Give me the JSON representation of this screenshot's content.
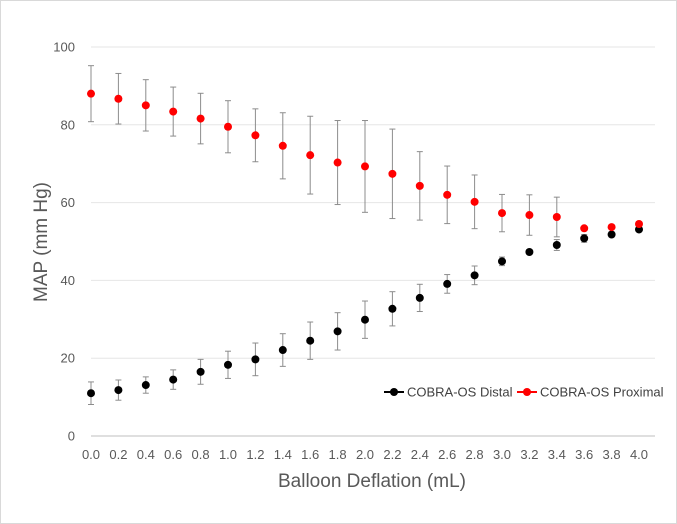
{
  "chart_data": {
    "type": "scatter",
    "xlabel": "Balloon Deflation (mL)",
    "ylabel": "MAP (mm Hg)",
    "xlim": [
      0,
      4
    ],
    "ylim": [
      0,
      100
    ],
    "x_ticks": [
      "0.0",
      "0.2",
      "0.4",
      "0.6",
      "0.8",
      "1.0",
      "1.2",
      "1.4",
      "1.6",
      "1.8",
      "2.0",
      "2.2",
      "2.4",
      "2.6",
      "2.8",
      "3.0",
      "3.2",
      "3.4",
      "3.6",
      "3.8",
      "4.0"
    ],
    "y_ticks": [
      "0",
      "20",
      "40",
      "60",
      "80",
      "100"
    ],
    "grid": "horizontal",
    "legend_position": "bottom-right",
    "series": [
      {
        "name": "COBRA-OS Distal",
        "color": "#000000",
        "x": [
          0.0,
          0.2,
          0.4,
          0.6,
          0.8,
          1.0,
          1.2,
          1.4,
          1.6,
          1.8,
          2.0,
          2.2,
          2.4,
          2.6,
          2.8,
          3.0,
          3.2,
          3.4,
          3.6,
          3.8,
          4.0
        ],
        "y": [
          11.0,
          11.8,
          13.1,
          14.5,
          16.5,
          18.3,
          19.7,
          22.1,
          24.5,
          26.9,
          29.9,
          32.7,
          35.5,
          39.1,
          41.3,
          44.9,
          47.3,
          49.1,
          50.8,
          51.8,
          53.1
        ],
        "err": [
          2.9,
          2.6,
          2.1,
          2.5,
          3.2,
          3.5,
          4.2,
          4.2,
          4.8,
          4.8,
          4.8,
          4.4,
          3.5,
          2.4,
          2.4,
          1.1,
          0.0,
          1.4,
          1.0,
          0.0,
          0.0
        ]
      },
      {
        "name": "COBRA-OS Proximal",
        "color": "#ff0000",
        "x": [
          0.0,
          0.2,
          0.4,
          0.6,
          0.8,
          1.0,
          1.2,
          1.4,
          1.6,
          1.8,
          2.0,
          2.2,
          2.4,
          2.6,
          2.8,
          3.0,
          3.2,
          3.4,
          3.6,
          3.8,
          4.0
        ],
        "y": [
          88.0,
          86.7,
          85.0,
          83.4,
          81.6,
          79.5,
          77.3,
          74.6,
          72.2,
          70.3,
          69.3,
          67.4,
          64.3,
          62.0,
          60.2,
          57.3,
          56.8,
          56.3,
          53.4,
          53.7,
          54.5
        ],
        "err": [
          7.2,
          6.5,
          6.6,
          6.3,
          6.5,
          6.7,
          6.8,
          8.5,
          10.0,
          10.8,
          11.8,
          11.5,
          8.8,
          7.4,
          6.9,
          4.8,
          5.2,
          5.1,
          0.0,
          0.0,
          0.0
        ]
      }
    ]
  }
}
